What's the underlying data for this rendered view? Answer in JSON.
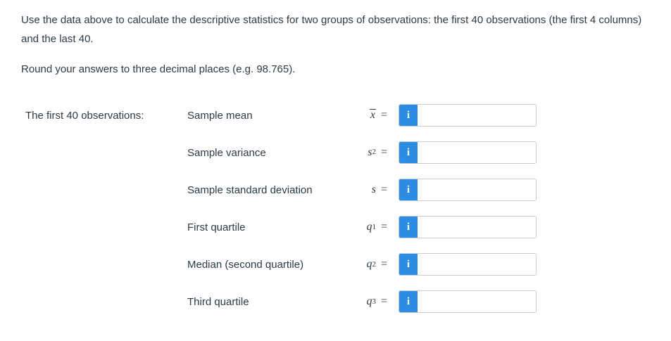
{
  "instructions": {
    "paragraph1": "Use the data above to calculate the descriptive statistics for two groups of observations: the first 40 observations (the first 4 columns) and the last 40.",
    "paragraph2": "Round your answers to three decimal places (e.g. 98.765)."
  },
  "group_label": "The first 40 observations:",
  "colors": {
    "accent_blue": "#2a8ce2",
    "text": "#2d3b45",
    "input_border": "#c7cdd1"
  },
  "rows": [
    {
      "label": "Sample mean",
      "symbol": {
        "base": "x",
        "sup": "",
        "sub": ""
      },
      "equals": "=",
      "info_icon": "i",
      "input_value": ""
    },
    {
      "label": "Sample variance",
      "symbol": {
        "base": "s",
        "sup": "2",
        "sub": ""
      },
      "equals": "=",
      "info_icon": "i",
      "input_value": ""
    },
    {
      "label": "Sample standard deviation",
      "symbol": {
        "base": "s",
        "sup": "",
        "sub": ""
      },
      "equals": "=",
      "info_icon": "i",
      "input_value": ""
    },
    {
      "label": "First quartile",
      "symbol": {
        "base": "q",
        "sup": "",
        "sub": "1"
      },
      "equals": "=",
      "info_icon": "i",
      "input_value": ""
    },
    {
      "label": "Median (second quartile)",
      "symbol": {
        "base": "q",
        "sup": "",
        "sub": "2"
      },
      "equals": "=",
      "info_icon": "i",
      "input_value": ""
    },
    {
      "label": "Third quartile",
      "symbol": {
        "base": "q",
        "sup": "",
        "sub": "3"
      },
      "equals": "=",
      "info_icon": "i",
      "input_value": ""
    }
  ]
}
